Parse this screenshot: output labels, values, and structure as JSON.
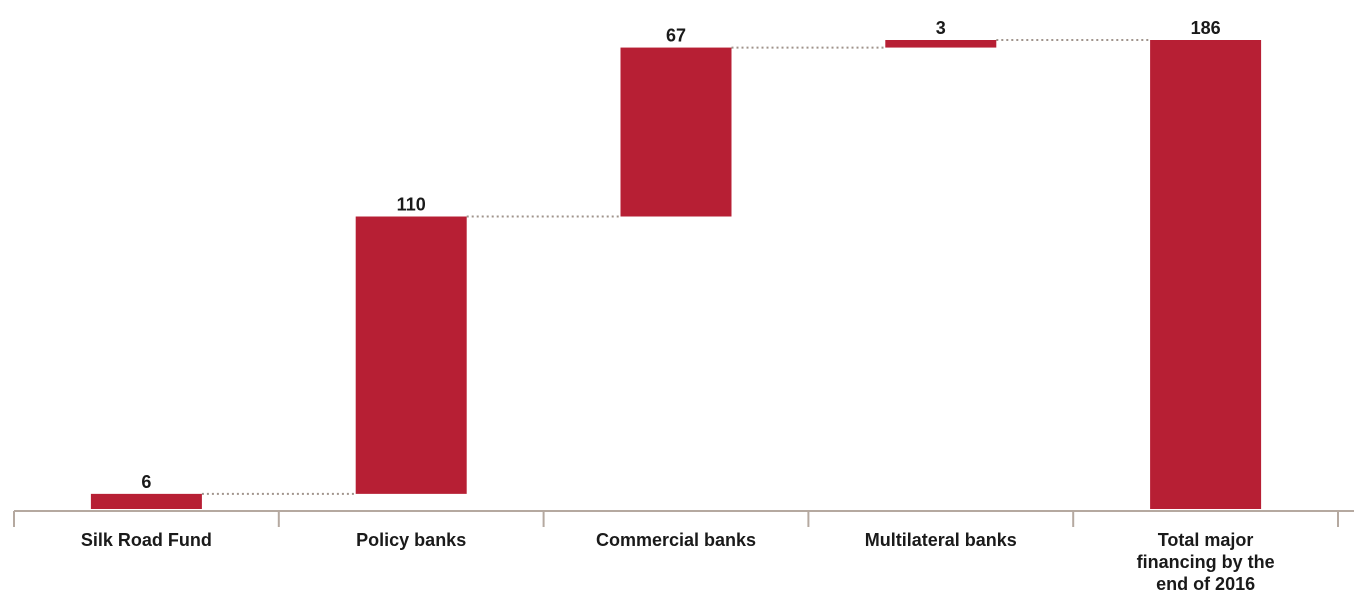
{
  "chart_data": {
    "type": "bar",
    "subtype": "waterfall",
    "categories": [
      [
        "Silk Road Fund"
      ],
      [
        "Policy banks"
      ],
      [
        "Commercial banks"
      ],
      [
        "Multilateral banks"
      ],
      [
        "Total major",
        "financing by the",
        "end of 2016"
      ]
    ],
    "values": [
      6,
      110,
      67,
      3,
      186
    ],
    "is_total": [
      false,
      false,
      false,
      false,
      true
    ],
    "value_labels": [
      "6",
      "110",
      "67",
      "3",
      "186"
    ],
    "title": "",
    "xlabel": "",
    "ylabel": "",
    "ylim": [
      0,
      186
    ],
    "grid": false,
    "legend": "none",
    "colors": {
      "bar": "#b71f34",
      "axis": "#b5a9a0",
      "connector": "#a0948c"
    }
  }
}
